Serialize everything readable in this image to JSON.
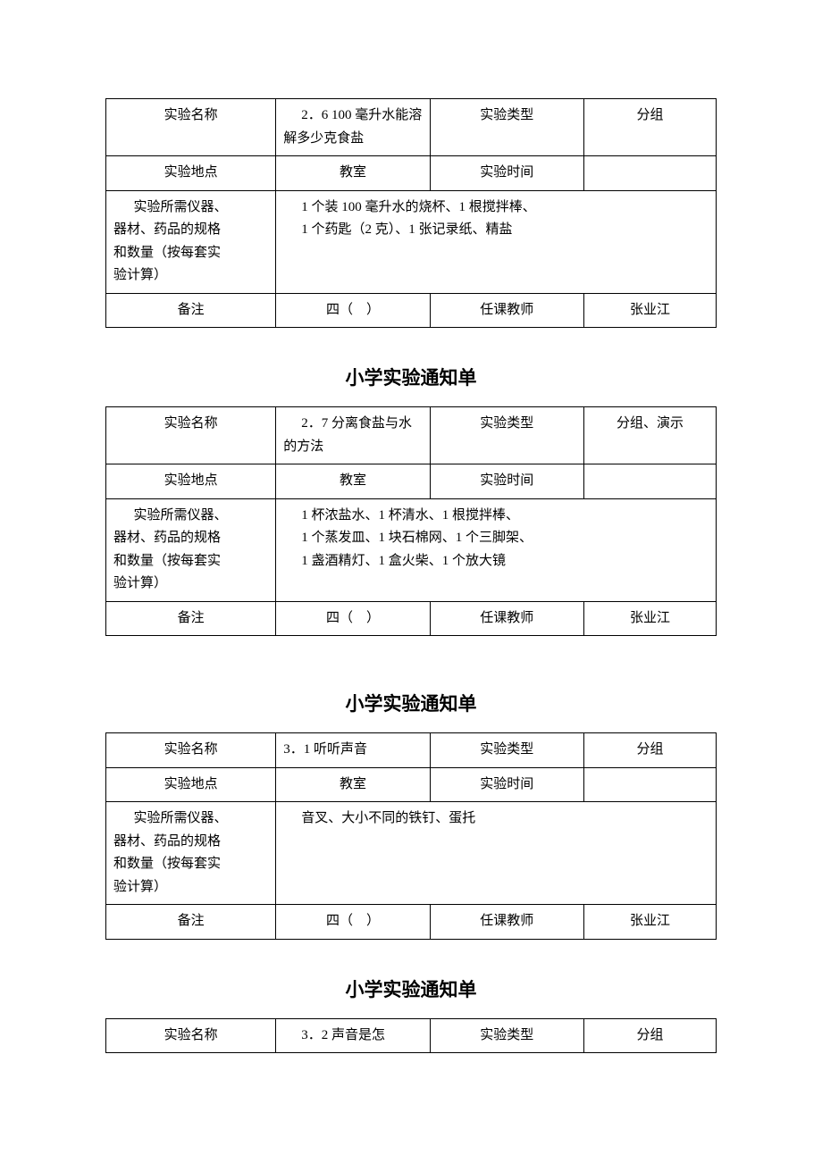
{
  "labels": {
    "experiment_name": "实验名称",
    "experiment_type": "实验类型",
    "experiment_place": "实验地点",
    "experiment_time": "实验时间",
    "materials": "实验所需仪器、器材、药品的规格和数量（按每套实验计算）",
    "materials_line1": "实验所需仪器、",
    "materials_line2": "器材、药品的规格",
    "materials_line3": "和数量（按每套实",
    "materials_line4": "验计算）",
    "remark": "备注",
    "teacher": "任课教师",
    "form_title": "小学实验通知单"
  },
  "forms": [
    {
      "name": "2．6  100 毫升水能溶解多少克食盐",
      "type": "分组",
      "place": "教室",
      "time": "",
      "materials": "1 个装 100 毫升水的烧杯、1 根搅拌棒、<br>1 个药匙（2 克）、1 张记录纸、精盐",
      "remark": "四（　）",
      "teacher": "张业江"
    },
    {
      "name": "2．7 分离食盐与水的方法",
      "type": "分组、演示",
      "place": "教室",
      "time": "",
      "materials": "1 杯浓盐水、1 杯清水、1 根搅拌棒、<br>1 个蒸发皿、1 块石棉网、1 个三脚架、<br>1 盏酒精灯、1 盒火柴、1 个放大镜",
      "remark": "四（　）",
      "teacher": "张业江"
    },
    {
      "name": "3．1 听听声音",
      "type": "分组",
      "place": "教室",
      "time": "",
      "materials": "音叉、大小不同的铁钉、蛋托",
      "remark": "四（　）",
      "teacher": "张业江"
    },
    {
      "name": "3．2 声音是怎",
      "type": "分组",
      "place": "",
      "time": "",
      "materials": "",
      "remark": "",
      "teacher": ""
    }
  ],
  "style": {
    "background_color": "#ffffff",
    "text_color": "#000000",
    "border_color": "#000000",
    "body_fontsize": 15,
    "title_fontsize": 21
  }
}
